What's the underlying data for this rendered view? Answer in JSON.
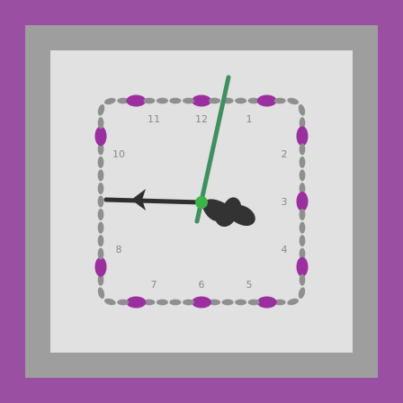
{
  "clock": {
    "numerals": [
      "12",
      "1",
      "2",
      "3",
      "4",
      "5",
      "6",
      "7",
      "8",
      "9",
      "10",
      "11"
    ],
    "time": {
      "hour": 2,
      "minute": 57,
      "second": 40
    },
    "colors": {
      "frame": "#9b4fa3",
      "bezel": "#9e9e9e",
      "face": "#e1e1e1",
      "tick_minor": "#8f8f8f",
      "tick_major": "#9b2fa0",
      "hour_hand": "#333333",
      "minute_hand": "#2f2f2f",
      "second_hand": "#3f8f5f",
      "center_cap": "#3db34a"
    }
  }
}
